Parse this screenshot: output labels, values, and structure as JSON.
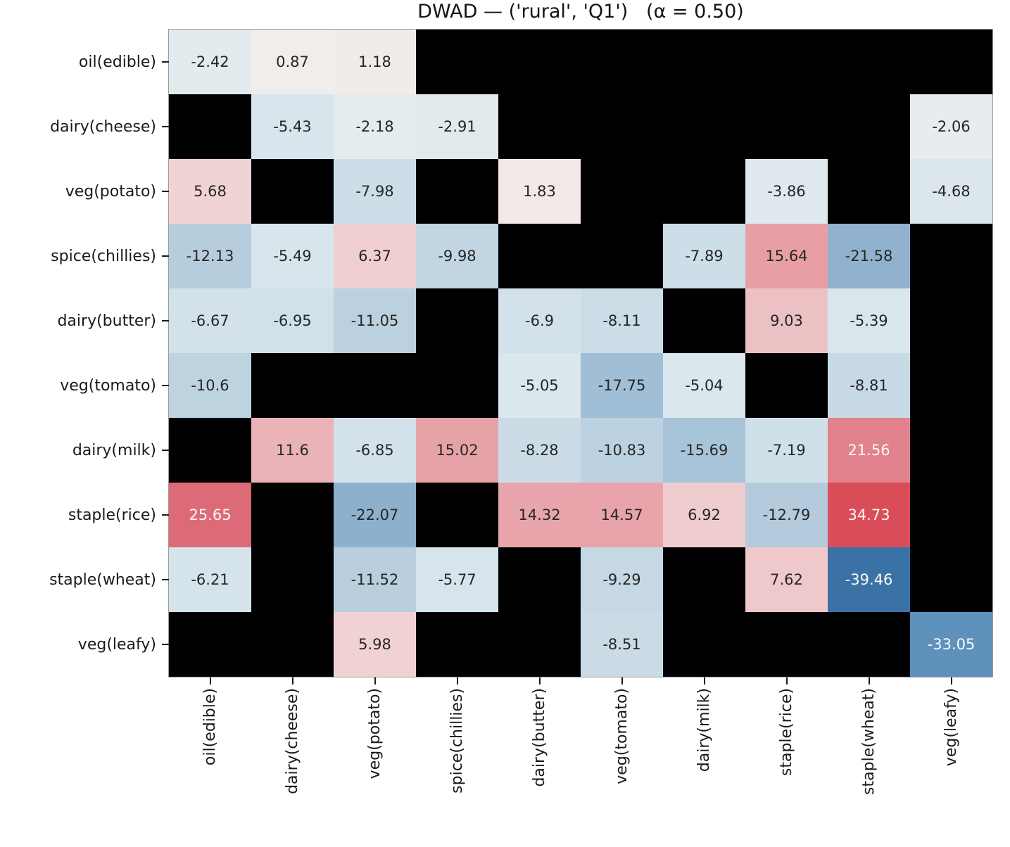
{
  "figure": {
    "background": "#ffffff"
  },
  "chart_data": {
    "type": "heatmap",
    "title": "DWAD — ('rural', 'Q1')   (α = 0.50)",
    "row_labels": [
      "oil(edible)",
      "dairy(cheese)",
      "veg(potato)",
      "spice(chillies)",
      "dairy(butter)",
      "veg(tomato)",
      "dairy(milk)",
      "staple(rice)",
      "staple(wheat)",
      "veg(leafy)"
    ],
    "col_labels": [
      "oil(edible)",
      "dairy(cheese)",
      "veg(potato)",
      "spice(chillies)",
      "dairy(butter)",
      "veg(tomato)",
      "dairy(milk)",
      "staple(rice)",
      "staple(wheat)",
      "veg(leafy)"
    ],
    "matrix": [
      [
        -2.42,
        0.87,
        1.18,
        null,
        null,
        null,
        null,
        null,
        null,
        null
      ],
      [
        null,
        -5.43,
        -2.18,
        -2.91,
        null,
        null,
        null,
        null,
        null,
        -2.06
      ],
      [
        5.68,
        null,
        -7.98,
        null,
        1.83,
        null,
        null,
        -3.86,
        null,
        -4.68
      ],
      [
        -12.13,
        -5.49,
        6.37,
        -9.98,
        null,
        null,
        -7.89,
        15.64,
        -21.58,
        null
      ],
      [
        -6.67,
        -6.95,
        -11.05,
        null,
        -6.9,
        -8.11,
        null,
        9.03,
        -5.39,
        null
      ],
      [
        -10.6,
        null,
        null,
        null,
        -5.05,
        -17.75,
        -5.04,
        null,
        -8.81,
        null
      ],
      [
        null,
        11.6,
        -6.85,
        15.02,
        -8.28,
        -10.83,
        -15.69,
        -7.19,
        21.56,
        null
      ],
      [
        25.65,
        null,
        -22.07,
        null,
        14.32,
        14.57,
        6.92,
        -12.79,
        34.73,
        null
      ],
      [
        -6.21,
        null,
        -11.52,
        -5.77,
        null,
        -9.29,
        null,
        7.62,
        -39.46,
        null
      ],
      [
        null,
        null,
        5.98,
        null,
        null,
        -8.51,
        null,
        null,
        null,
        -33.05
      ]
    ],
    "value_min": -39.46,
    "value_max": 34.73,
    "colormap": "diverging blue(negative)-white-red(positive), black = missing",
    "missing_color": "#000000",
    "annotation_dark_text": "#262626",
    "annotation_light_text": "#fafafa",
    "colormap_anchors": [
      {
        "t": -1.0,
        "color": "#3a72a5"
      },
      {
        "t": -0.85,
        "color": "#5c90ba"
      },
      {
        "t": -0.55,
        "color": "#8fb2ce"
      },
      {
        "t": -0.44,
        "color": "#a2bfd6"
      },
      {
        "t": -0.3,
        "color": "#b7cedd"
      },
      {
        "t": -0.2,
        "color": "#cddee8"
      },
      {
        "t": -0.125,
        "color": "#dbe7ed"
      },
      {
        "t": -0.05,
        "color": "#e6ecef"
      },
      {
        "t": 0.0,
        "color": "#f3f0ee"
      },
      {
        "t": 0.03,
        "color": "#f0ecea"
      },
      {
        "t": 0.05,
        "color": "#f2e9e7"
      },
      {
        "t": 0.145,
        "color": "#f0d3d4"
      },
      {
        "t": 0.19,
        "color": "#eec9cb"
      },
      {
        "t": 0.29,
        "color": "#eab4b9"
      },
      {
        "t": 0.39,
        "color": "#e7a0a6"
      },
      {
        "t": 0.54,
        "color": "#e2838d"
      },
      {
        "t": 0.64,
        "color": "#dd6c78"
      },
      {
        "t": 0.87,
        "color": "#d94e59"
      },
      {
        "t": 1.0,
        "color": "#d63e4b"
      }
    ]
  }
}
